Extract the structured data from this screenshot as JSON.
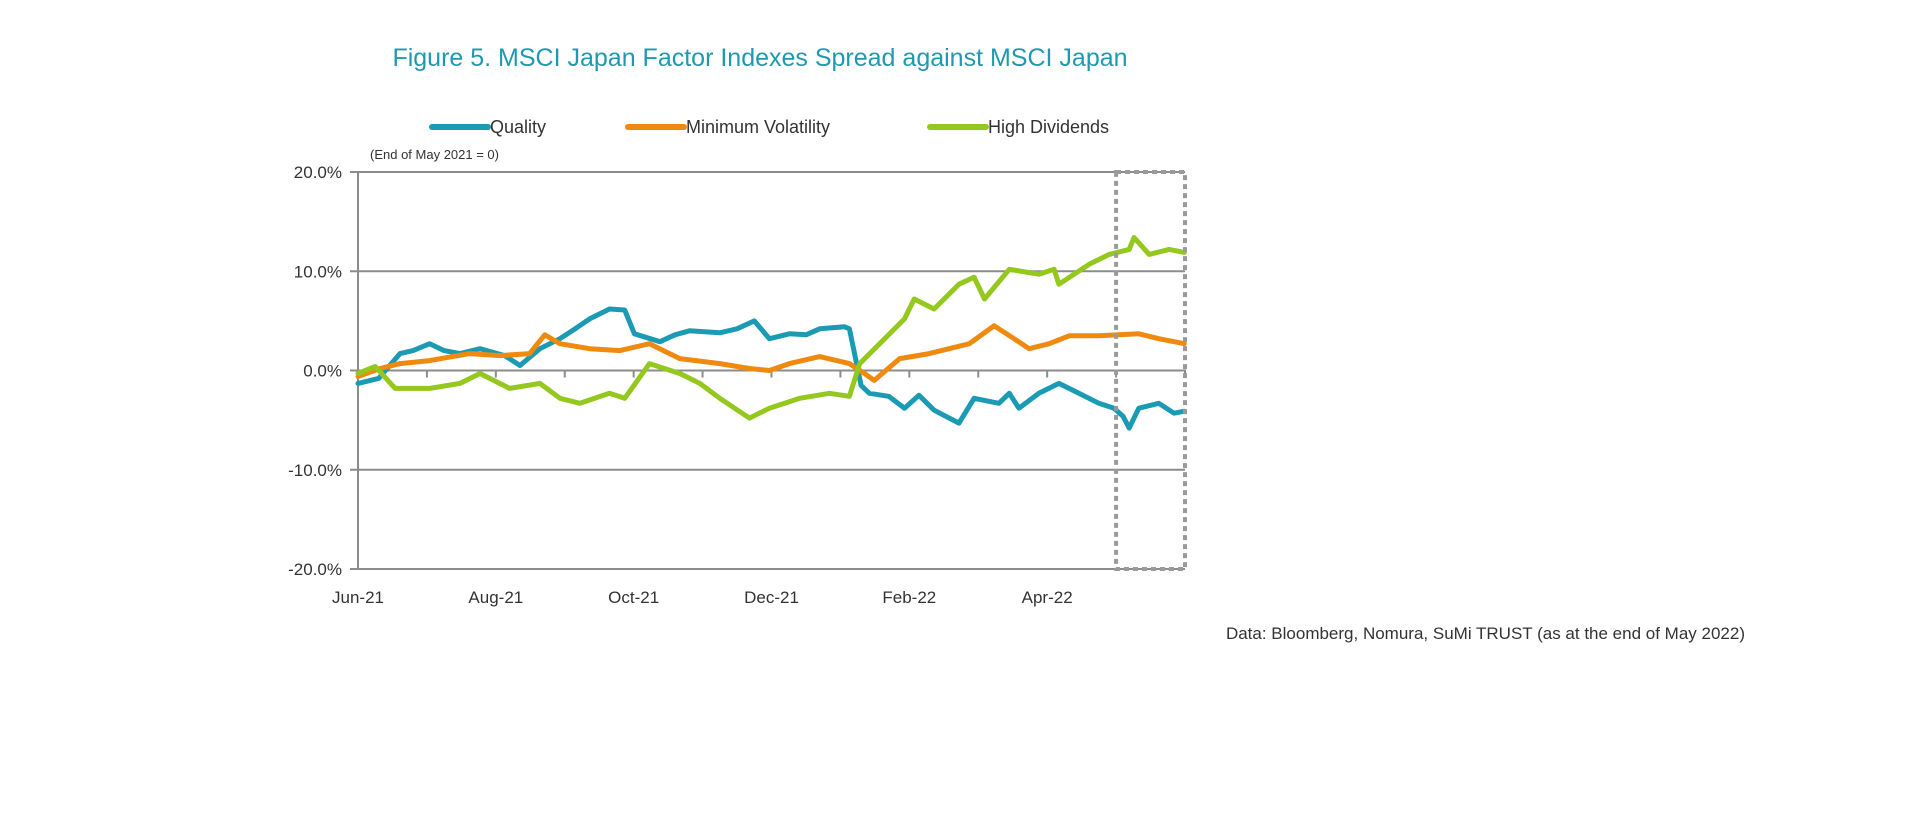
{
  "chart_data": {
    "type": "line",
    "title": "Figure 5. MSCI Japan Factor Indexes Spread against MSCI Japan",
    "note": "(End of May 2021 = 0)",
    "source": "Data: Bloomberg, Nomura, SuMi TRUST (as at the end of May 2022)",
    "xlabel": "",
    "ylabel": "",
    "x_unit": "months since start of Jun-21",
    "xlim": [
      0,
      12
    ],
    "ylim": [
      -20,
      20
    ],
    "x_ticks": [
      {
        "x": 0,
        "label": "Jun-21"
      },
      {
        "x": 2,
        "label": "Aug-21"
      },
      {
        "x": 4,
        "label": "Oct-21"
      },
      {
        "x": 6,
        "label": "Dec-21"
      },
      {
        "x": 8,
        "label": "Feb-22"
      },
      {
        "x": 10,
        "label": "Apr-22"
      }
    ],
    "y_ticks": [
      {
        "y": 20,
        "label": "20.0%"
      },
      {
        "y": 10,
        "label": "10.0%"
      },
      {
        "y": 0,
        "label": "0.0%"
      },
      {
        "y": -10,
        "label": "-10.0%"
      },
      {
        "y": -20,
        "label": "-20.0%"
      }
    ],
    "grid": true,
    "legend": "top",
    "highlight_range": [
      11.0,
      12.0
    ],
    "series": [
      {
        "name": "Quality",
        "color": "#1a9bb3",
        "points": [
          [
            0,
            -1.3
          ],
          [
            0.3,
            -0.8
          ],
          [
            0.61,
            1.7
          ],
          [
            0.8,
            2.0
          ],
          [
            1.04,
            2.7
          ],
          [
            1.25,
            2.0
          ],
          [
            1.48,
            1.7
          ],
          [
            1.77,
            2.2
          ],
          [
            2.13,
            1.5
          ],
          [
            2.35,
            0.5
          ],
          [
            2.64,
            2.2
          ],
          [
            2.93,
            3.2
          ],
          [
            3.15,
            4.2
          ],
          [
            3.36,
            5.2
          ],
          [
            3.65,
            6.2
          ],
          [
            3.87,
            6.1
          ],
          [
            4.01,
            3.7
          ],
          [
            4.38,
            2.9
          ],
          [
            4.6,
            3.6
          ],
          [
            4.81,
            4.0
          ],
          [
            5.25,
            3.8
          ],
          [
            5.5,
            4.2
          ],
          [
            5.75,
            5.0
          ],
          [
            5.97,
            3.2
          ],
          [
            6.26,
            3.7
          ],
          [
            6.5,
            3.6
          ],
          [
            6.7,
            4.2
          ],
          [
            7.06,
            4.4
          ],
          [
            7.13,
            4.2
          ],
          [
            7.3,
            -1.5
          ],
          [
            7.42,
            -2.3
          ],
          [
            7.7,
            -2.6
          ],
          [
            7.93,
            -3.8
          ],
          [
            8.14,
            -2.5
          ],
          [
            8.36,
            -4.0
          ],
          [
            8.58,
            -4.8
          ],
          [
            8.72,
            -5.3
          ],
          [
            8.94,
            -2.8
          ],
          [
            9.3,
            -3.3
          ],
          [
            9.45,
            -2.3
          ],
          [
            9.59,
            -3.8
          ],
          [
            9.88,
            -2.3
          ],
          [
            10.17,
            -1.3
          ],
          [
            10.46,
            -2.3
          ],
          [
            10.75,
            -3.3
          ],
          [
            10.97,
            -3.8
          ],
          [
            11.1,
            -4.6
          ],
          [
            11.19,
            -5.8
          ],
          [
            11.33,
            -3.8
          ],
          [
            11.62,
            -3.3
          ],
          [
            11.84,
            -4.3
          ],
          [
            11.99,
            -4.1
          ]
        ]
      },
      {
        "name": "Minimum Volatility",
        "color": "#ef8a0f",
        "points": [
          [
            0,
            -0.6
          ],
          [
            0.32,
            0.2
          ],
          [
            0.61,
            0.7
          ],
          [
            1.04,
            1.0
          ],
          [
            1.62,
            1.7
          ],
          [
            2.06,
            1.5
          ],
          [
            2.49,
            1.7
          ],
          [
            2.71,
            3.6
          ],
          [
            2.93,
            2.7
          ],
          [
            3.36,
            2.2
          ],
          [
            3.8,
            2.0
          ],
          [
            4.23,
            2.7
          ],
          [
            4.67,
            1.2
          ],
          [
            5.25,
            0.7
          ],
          [
            5.68,
            0.2
          ],
          [
            5.97,
            0.0
          ],
          [
            6.26,
            0.7
          ],
          [
            6.7,
            1.4
          ],
          [
            7.13,
            0.7
          ],
          [
            7.35,
            -0.3
          ],
          [
            7.49,
            -1.0
          ],
          [
            7.86,
            1.2
          ],
          [
            8.29,
            1.7
          ],
          [
            8.87,
            2.7
          ],
          [
            9.23,
            4.5
          ],
          [
            9.52,
            3.2
          ],
          [
            9.74,
            2.2
          ],
          [
            10.03,
            2.7
          ],
          [
            10.32,
            3.5
          ],
          [
            10.75,
            3.5
          ],
          [
            11.33,
            3.7
          ],
          [
            11.62,
            3.2
          ],
          [
            11.99,
            2.7
          ]
        ]
      },
      {
        "name": "High Dividends",
        "color": "#94c81f",
        "points": [
          [
            0,
            -0.3
          ],
          [
            0.25,
            0.4
          ],
          [
            0.54,
            -1.8
          ],
          [
            1.04,
            -1.8
          ],
          [
            1.48,
            -1.3
          ],
          [
            1.77,
            -0.3
          ],
          [
            2.2,
            -1.8
          ],
          [
            2.64,
            -1.3
          ],
          [
            2.93,
            -2.8
          ],
          [
            3.22,
            -3.3
          ],
          [
            3.65,
            -2.3
          ],
          [
            3.87,
            -2.8
          ],
          [
            4.23,
            0.7
          ],
          [
            4.67,
            -0.3
          ],
          [
            4.96,
            -1.3
          ],
          [
            5.25,
            -2.8
          ],
          [
            5.68,
            -4.8
          ],
          [
            5.97,
            -3.8
          ],
          [
            6.41,
            -2.8
          ],
          [
            6.84,
            -2.3
          ],
          [
            7.13,
            -2.6
          ],
          [
            7.28,
            0.7
          ],
          [
            7.57,
            2.7
          ],
          [
            7.93,
            5.2
          ],
          [
            8.07,
            7.2
          ],
          [
            8.36,
            6.2
          ],
          [
            8.72,
            8.7
          ],
          [
            8.94,
            9.4
          ],
          [
            9.09,
            7.2
          ],
          [
            9.45,
            10.2
          ],
          [
            9.88,
            9.7
          ],
          [
            10.1,
            10.2
          ],
          [
            10.17,
            8.7
          ],
          [
            10.61,
            10.7
          ],
          [
            10.9,
            11.7
          ],
          [
            11.19,
            12.2
          ],
          [
            11.26,
            13.4
          ],
          [
            11.48,
            11.7
          ],
          [
            11.77,
            12.2
          ],
          [
            11.99,
            11.9
          ]
        ]
      }
    ]
  }
}
